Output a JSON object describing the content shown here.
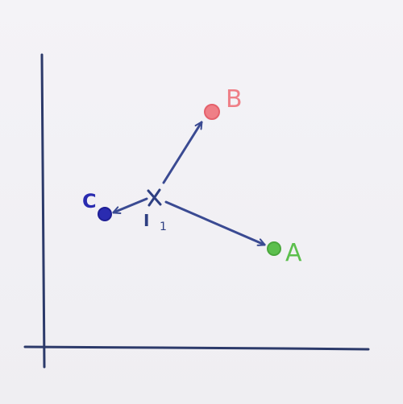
{
  "diagram": {
    "points": {
      "a": {
        "label": "A",
        "color": "#5cbf4d"
      },
      "b": {
        "label": "B",
        "color": "#ef7f87"
      },
      "c": {
        "label": "C",
        "color": "#2a2bb0"
      },
      "x": {
        "label": "X",
        "color": "#2e3f82"
      }
    },
    "origin_label": "I",
    "origin_subscript": "1",
    "colors": {
      "axis": "#2c3a6a",
      "arrow": "#3a4a92"
    }
  }
}
